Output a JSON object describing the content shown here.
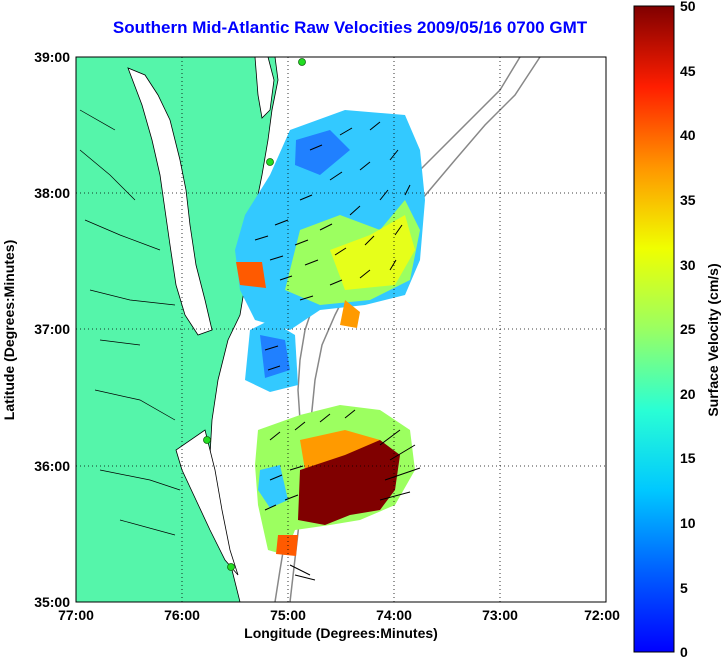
{
  "title": "Southern Mid-Atlantic Raw Velocities 2009/05/16 0700 GMT",
  "x_axis": {
    "label": "Longitude (Degrees:Minutes)",
    "ticks": [
      "77:00",
      "76:00",
      "75:00",
      "74:00",
      "73:00",
      "72:00"
    ]
  },
  "y_axis": {
    "label": "Latitude (Degrees:Minutes)",
    "ticks": [
      "39:00",
      "38:00",
      "37:00",
      "36:00",
      "35:00"
    ]
  },
  "colorbar": {
    "label": "Surface Velocity (cm/s)",
    "ticks": [
      "50",
      "45",
      "40",
      "35",
      "30",
      "25",
      "20",
      "15",
      "10",
      "5",
      "0"
    ]
  },
  "colors": {
    "land": "#55f5aa",
    "title": "#0000ff",
    "grid": "#000000",
    "isobath": "#888888",
    "station": "#22dd22"
  }
}
